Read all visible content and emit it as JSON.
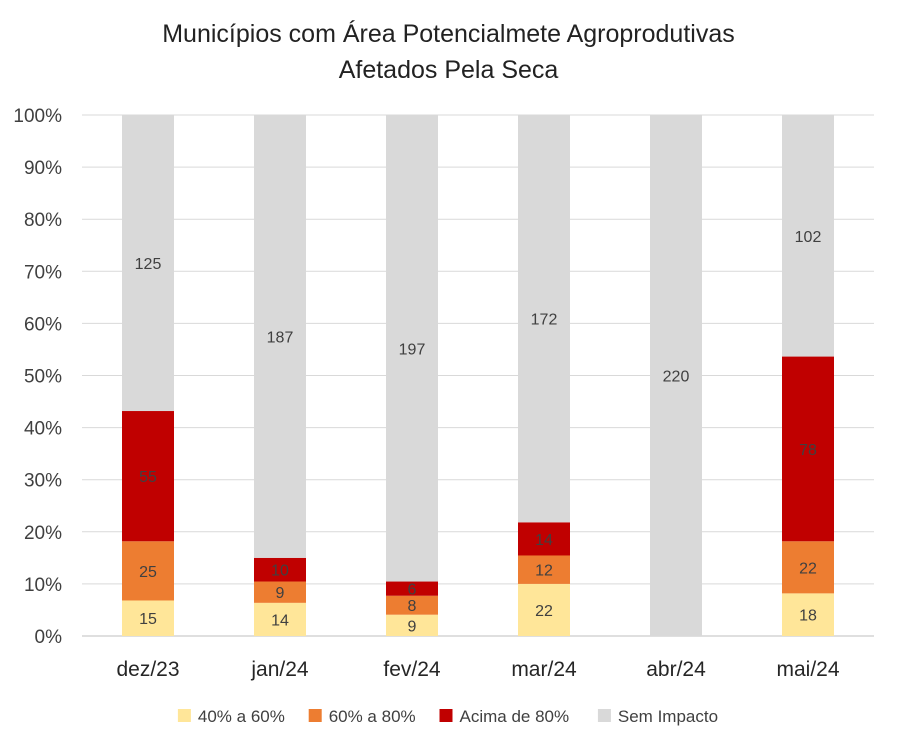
{
  "chart_data": {
    "type": "bar",
    "stacked": true,
    "normalized": true,
    "title": [
      "Municípios com Área Potencialmete Agroprodutivas",
      "Afetados Pela Seca"
    ],
    "xlabel": "",
    "ylabel": "",
    "ylim": [
      0,
      100
    ],
    "y_ticks": [
      "0%",
      "10%",
      "20%",
      "30%",
      "40%",
      "50%",
      "60%",
      "70%",
      "80%",
      "90%",
      "100%"
    ],
    "categories": [
      "dez/23",
      "jan/24",
      "fev/24",
      "mar/24",
      "abr/24",
      "mai/24"
    ],
    "series": [
      {
        "name": "40% a 60%",
        "color": "#FFE699",
        "values": [
          15,
          14,
          9,
          22,
          0,
          18
        ]
      },
      {
        "name": "60% a 80%",
        "color": "#ED7D31",
        "values": [
          25,
          9,
          8,
          12,
          0,
          22
        ]
      },
      {
        "name": "Acima de 80%",
        "color": "#C00000",
        "values": [
          55,
          10,
          6,
          14,
          0,
          78
        ]
      },
      {
        "name": "Sem Impacto",
        "color": "#D9D9D9",
        "values": [
          125,
          187,
          197,
          172,
          220,
          102
        ]
      }
    ],
    "grid": true,
    "legend_position": "bottom",
    "label_color": "#404040",
    "grid_color": "#D9D9D9"
  }
}
